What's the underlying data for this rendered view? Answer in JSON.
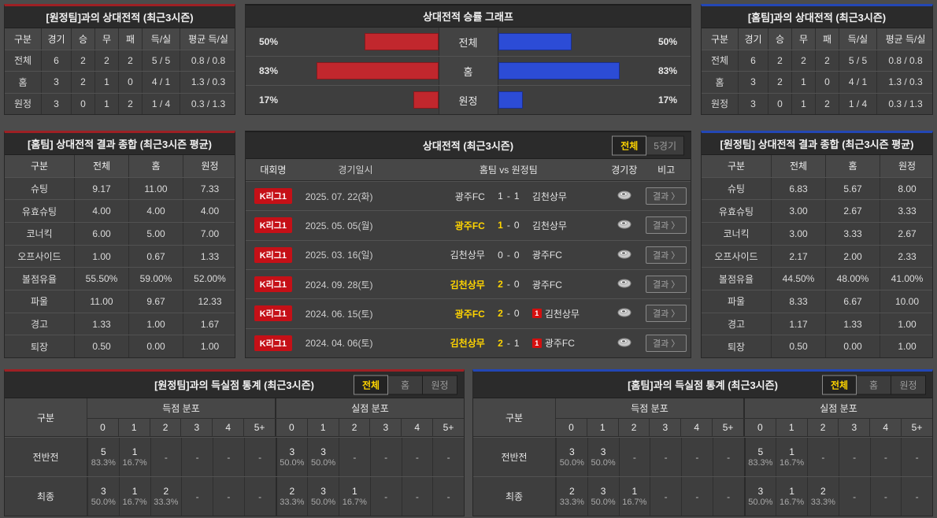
{
  "colors": {
    "accent_red": "#9e2024",
    "accent_blue": "#2347b5",
    "bar_red": "#c1272d",
    "bar_blue": "#2c4cd6",
    "highlight_yellow": "#ffd400",
    "league_badge_red": "#c51017"
  },
  "rec_vs_away": {
    "title": "[원정팀]과의 상대전적 (최근3시즌)",
    "headers": [
      "구분",
      "경기",
      "승",
      "무",
      "패",
      "득/실",
      "평균 득/실"
    ],
    "rows": [
      [
        "전체",
        "6",
        "2",
        "2",
        "2",
        "5 / 5",
        "0.8 / 0.8"
      ],
      [
        "홈",
        "3",
        "2",
        "1",
        "0",
        "4 / 1",
        "1.3 / 0.3"
      ],
      [
        "원정",
        "3",
        "0",
        "1",
        "2",
        "1 / 4",
        "0.3 / 1.3"
      ]
    ]
  },
  "rec_vs_home": {
    "title": "[홈팀]과의 상대전적 (최근3시즌)",
    "headers": [
      "구분",
      "경기",
      "승",
      "무",
      "패",
      "득/실",
      "평균 득/실"
    ],
    "rows": [
      [
        "전체",
        "6",
        "2",
        "2",
        "2",
        "5 / 5",
        "0.8 / 0.8"
      ],
      [
        "홈",
        "3",
        "2",
        "1",
        "0",
        "4 / 1",
        "1.3 / 0.3"
      ],
      [
        "원정",
        "3",
        "0",
        "1",
        "2",
        "1 / 4",
        "0.3 / 1.3"
      ]
    ]
  },
  "winrate_chart": {
    "type": "bar",
    "title": "상대전적 승률 그래프",
    "categories": [
      "전체",
      "홈",
      "원정"
    ],
    "series": [
      {
        "name": "left-red-winrate",
        "values": [
          50,
          83,
          17
        ]
      },
      {
        "name": "right-blue-winrate",
        "values": [
          50,
          83,
          17
        ]
      }
    ],
    "unit": "%",
    "max_value": 100
  },
  "summary_home": {
    "title": "[홈팀] 상대전적 결과 종합 (최근3시즌 평균)",
    "headers": [
      "구분",
      "전체",
      "홈",
      "원정"
    ],
    "rows": [
      [
        "슈팅",
        "9.17",
        "11.00",
        "7.33"
      ],
      [
        "유효슈팅",
        "4.00",
        "4.00",
        "4.00"
      ],
      [
        "코너킥",
        "6.00",
        "5.00",
        "7.00"
      ],
      [
        "오프사이드",
        "1.00",
        "0.67",
        "1.33"
      ],
      [
        "볼점유율",
        "55.50%",
        "59.00%",
        "52.00%"
      ],
      [
        "파울",
        "11.00",
        "9.67",
        "12.33"
      ],
      [
        "경고",
        "1.33",
        "1.00",
        "1.67"
      ],
      [
        "퇴장",
        "0.50",
        "0.00",
        "1.00"
      ]
    ]
  },
  "summary_away": {
    "title": "[원정팀] 상대전적 결과 종합 (최근3시즌 평균)",
    "headers": [
      "구분",
      "전체",
      "홈",
      "원정"
    ],
    "rows": [
      [
        "슈팅",
        "6.83",
        "5.67",
        "8.00"
      ],
      [
        "유효슈팅",
        "3.00",
        "2.67",
        "3.33"
      ],
      [
        "코너킥",
        "3.00",
        "3.33",
        "2.67"
      ],
      [
        "오프사이드",
        "2.17",
        "2.00",
        "2.33"
      ],
      [
        "볼점유율",
        "44.50%",
        "48.00%",
        "41.00%"
      ],
      [
        "파울",
        "8.33",
        "6.67",
        "10.00"
      ],
      [
        "경고",
        "1.17",
        "1.33",
        "1.00"
      ],
      [
        "퇴장",
        "0.50",
        "0.00",
        "1.00"
      ]
    ]
  },
  "matches": {
    "title": "상대전적 (최근3시즌)",
    "filters": [
      {
        "label": "전체",
        "active": true
      },
      {
        "label": "5경기",
        "active": false
      }
    ],
    "headers": [
      "대회명",
      "경기일시",
      "홈팀 vs 원정팀",
      "경기장",
      "비고"
    ],
    "result_label": "결과 〉",
    "rows": [
      {
        "league": "K리그1",
        "date": "2025. 07. 22(화)",
        "home": "광주FC",
        "score": [
          "1",
          "1"
        ],
        "away": "김천상무",
        "winner": null,
        "away_card": null
      },
      {
        "league": "K리그1",
        "date": "2025. 05. 05(월)",
        "home": "광주FC",
        "score": [
          "1",
          "0"
        ],
        "away": "김천상무",
        "winner": "home",
        "away_card": null
      },
      {
        "league": "K리그1",
        "date": "2025. 03. 16(일)",
        "home": "김천상무",
        "score": [
          "0",
          "0"
        ],
        "away": "광주FC",
        "winner": null,
        "away_card": null
      },
      {
        "league": "K리그1",
        "date": "2024. 09. 28(토)",
        "home": "김천상무",
        "score": [
          "2",
          "0"
        ],
        "away": "광주FC",
        "winner": "home",
        "away_card": null
      },
      {
        "league": "K리그1",
        "date": "2024. 06. 15(토)",
        "home": "광주FC",
        "score": [
          "2",
          "0"
        ],
        "away": "김천상무",
        "winner": "home",
        "away_card": "1"
      },
      {
        "league": "K리그1",
        "date": "2024. 04. 06(토)",
        "home": "김천상무",
        "score": [
          "2",
          "1"
        ],
        "away": "광주FC",
        "winner": "home",
        "away_card": "1"
      }
    ]
  },
  "goals_vs_away": {
    "title": "[원정팀]과의 득실점 통계 (최근3시즌)",
    "filters": [
      {
        "label": "전체",
        "active": true
      },
      {
        "label": "홈",
        "active": false
      },
      {
        "label": "원정",
        "active": false
      }
    ],
    "corner_label": "구분",
    "groups": [
      "득점 분포",
      "실점 분포"
    ],
    "bins": [
      "0",
      "1",
      "2",
      "3",
      "4",
      "5+"
    ],
    "empty": "-",
    "rows": [
      {
        "label": "전반전",
        "scored": [
          {
            "n": "5",
            "p": "83.3%"
          },
          {
            "n": "1",
            "p": "16.7%"
          },
          null,
          null,
          null,
          null
        ],
        "conceded": [
          {
            "n": "3",
            "p": "50.0%"
          },
          {
            "n": "3",
            "p": "50.0%"
          },
          null,
          null,
          null,
          null
        ]
      },
      {
        "label": "최종",
        "scored": [
          {
            "n": "3",
            "p": "50.0%"
          },
          {
            "n": "1",
            "p": "16.7%"
          },
          {
            "n": "2",
            "p": "33.3%"
          },
          null,
          null,
          null
        ],
        "conceded": [
          {
            "n": "2",
            "p": "33.3%"
          },
          {
            "n": "3",
            "p": "50.0%"
          },
          {
            "n": "1",
            "p": "16.7%"
          },
          null,
          null,
          null
        ]
      }
    ]
  },
  "goals_vs_home": {
    "title": "[홈팀]과의 득실점 통계 (최근3시즌)",
    "filters": [
      {
        "label": "전체",
        "active": true
      },
      {
        "label": "홈",
        "active": false
      },
      {
        "label": "원정",
        "active": false
      }
    ],
    "corner_label": "구분",
    "groups": [
      "득점 분포",
      "실점 분포"
    ],
    "bins": [
      "0",
      "1",
      "2",
      "3",
      "4",
      "5+"
    ],
    "empty": "-",
    "rows": [
      {
        "label": "전반전",
        "scored": [
          {
            "n": "3",
            "p": "50.0%"
          },
          {
            "n": "3",
            "p": "50.0%"
          },
          null,
          null,
          null,
          null
        ],
        "conceded": [
          {
            "n": "5",
            "p": "83.3%"
          },
          {
            "n": "1",
            "p": "16.7%"
          },
          null,
          null,
          null,
          null
        ]
      },
      {
        "label": "최종",
        "scored": [
          {
            "n": "2",
            "p": "33.3%"
          },
          {
            "n": "3",
            "p": "50.0%"
          },
          {
            "n": "1",
            "p": "16.7%"
          },
          null,
          null,
          null
        ],
        "conceded": [
          {
            "n": "3",
            "p": "50.0%"
          },
          {
            "n": "1",
            "p": "16.7%"
          },
          {
            "n": "2",
            "p": "33.3%"
          },
          null,
          null,
          null
        ]
      }
    ]
  }
}
